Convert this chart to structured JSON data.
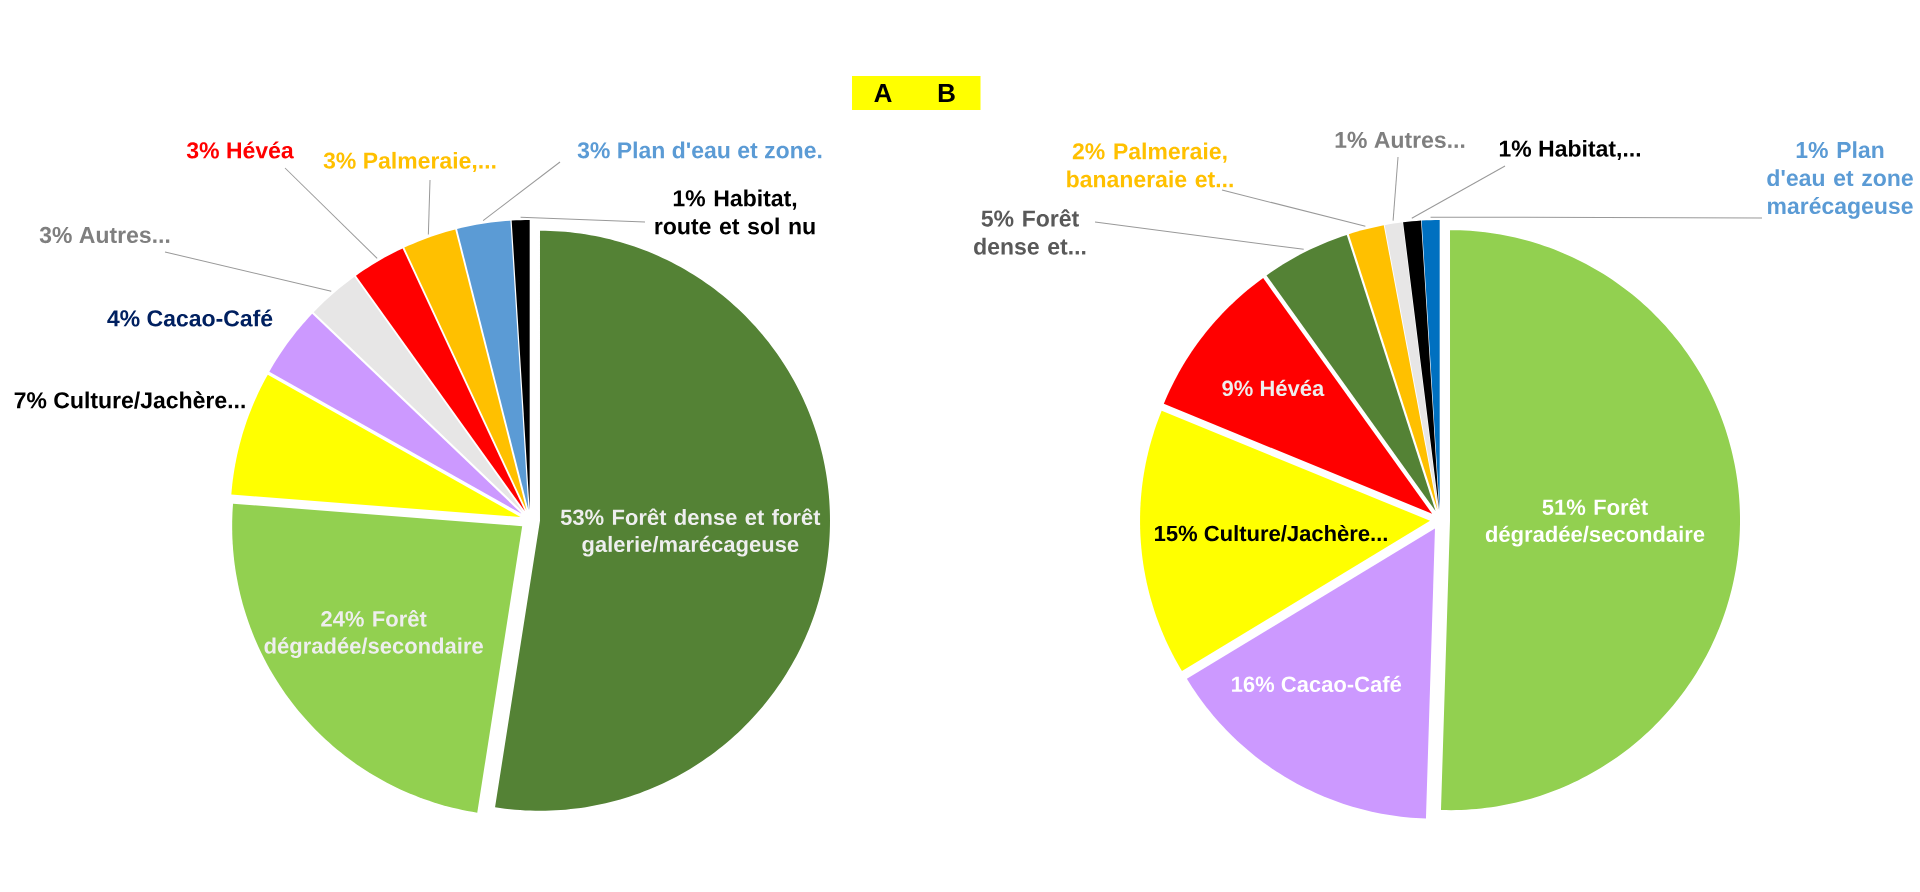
{
  "chart_data": [
    {
      "type": "pie",
      "title": "A",
      "categories": [
        "Forêt dense et forêt galerie/marécageuse",
        "Forêt dégradée/secondaire",
        "Culture/Jachère...",
        "Cacao-Café",
        "Autres...",
        "Hévéa",
        "Palmeraie,...",
        "Plan d'eau et zone.",
        "Habitat, route et sol nu"
      ],
      "values": [
        53,
        24,
        7,
        4,
        3,
        3,
        3,
        3,
        1
      ],
      "value_labels": [
        "53%",
        "24%",
        "7%",
        "4%",
        "3%",
        "3%",
        "3%",
        "3%",
        "1%"
      ],
      "colors": [
        "#548235",
        "#92d050",
        "#ffff00",
        "#cc99ff",
        "#e7e6e6",
        "#ff0000",
        "#ffc000",
        "#5b9bd5",
        "#000000"
      ]
    },
    {
      "type": "pie",
      "title": "B",
      "categories": [
        "Forêt dégradée/secondaire",
        "Cacao-Café",
        "Culture/Jachère...",
        "Hévéa",
        "Forêt dense et...",
        "Palmeraie, bananeraie et...",
        "Autres...",
        "Habitat,...",
        "Plan d'eau et zone marécageuse"
      ],
      "values": [
        51,
        16,
        15,
        9,
        5,
        2,
        1,
        1,
        1
      ],
      "value_labels": [
        "51%",
        "16%",
        "15%",
        "9%",
        "5%",
        "2%",
        "1%",
        "1%",
        "1%"
      ],
      "colors": [
        "#92d050",
        "#cc99ff",
        "#ffff00",
        "#ff0000",
        "#548235",
        "#ffc000",
        "#e7e6e6",
        "#000000",
        "#0070c0"
      ]
    }
  ]
}
